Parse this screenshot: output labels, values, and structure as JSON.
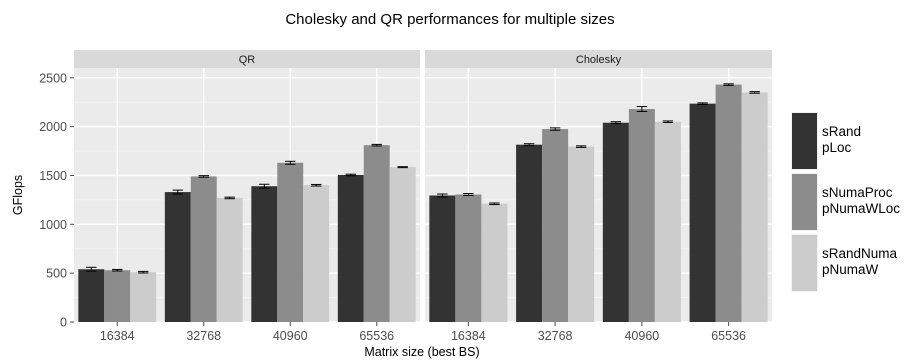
{
  "chart_data": {
    "type": "bar",
    "title": "Cholesky and QR performances for multiple sizes",
    "xlabel": "Matrix size (best BS)",
    "ylabel": "GFlops",
    "ylim": [
      0,
      2600
    ],
    "yticks": [
      0,
      500,
      1000,
      1500,
      2000,
      2500
    ],
    "categories": [
      "16384",
      "32768",
      "40960",
      "65536"
    ],
    "legend_position": "right",
    "series": [
      {
        "name": [
          "sRand",
          "pLoc"
        ],
        "color": "#333333"
      },
      {
        "name": [
          "sNumaProc",
          "pNumaWLoc"
        ],
        "color": "#8c8c8c"
      },
      {
        "name": [
          "sRandNuma",
          "pNumaW"
        ],
        "color": "#cccccc"
      }
    ],
    "panels": [
      {
        "label": "QR",
        "values": [
          [
            540,
            1330,
            1390,
            1505
          ],
          [
            530,
            1490,
            1630,
            1810
          ],
          [
            510,
            1270,
            1400,
            1585
          ]
        ],
        "errors": [
          [
            20,
            20,
            20,
            8
          ],
          [
            8,
            8,
            15,
            8
          ],
          [
            8,
            8,
            8,
            5
          ]
        ]
      },
      {
        "label": "Cholesky",
        "values": [
          [
            1295,
            1815,
            2040,
            2235
          ],
          [
            1305,
            1975,
            2180,
            2430
          ],
          [
            1210,
            1795,
            2050,
            2350
          ]
        ],
        "errors": [
          [
            15,
            10,
            10,
            8
          ],
          [
            10,
            12,
            25,
            8
          ],
          [
            8,
            8,
            8,
            8
          ]
        ]
      }
    ]
  }
}
